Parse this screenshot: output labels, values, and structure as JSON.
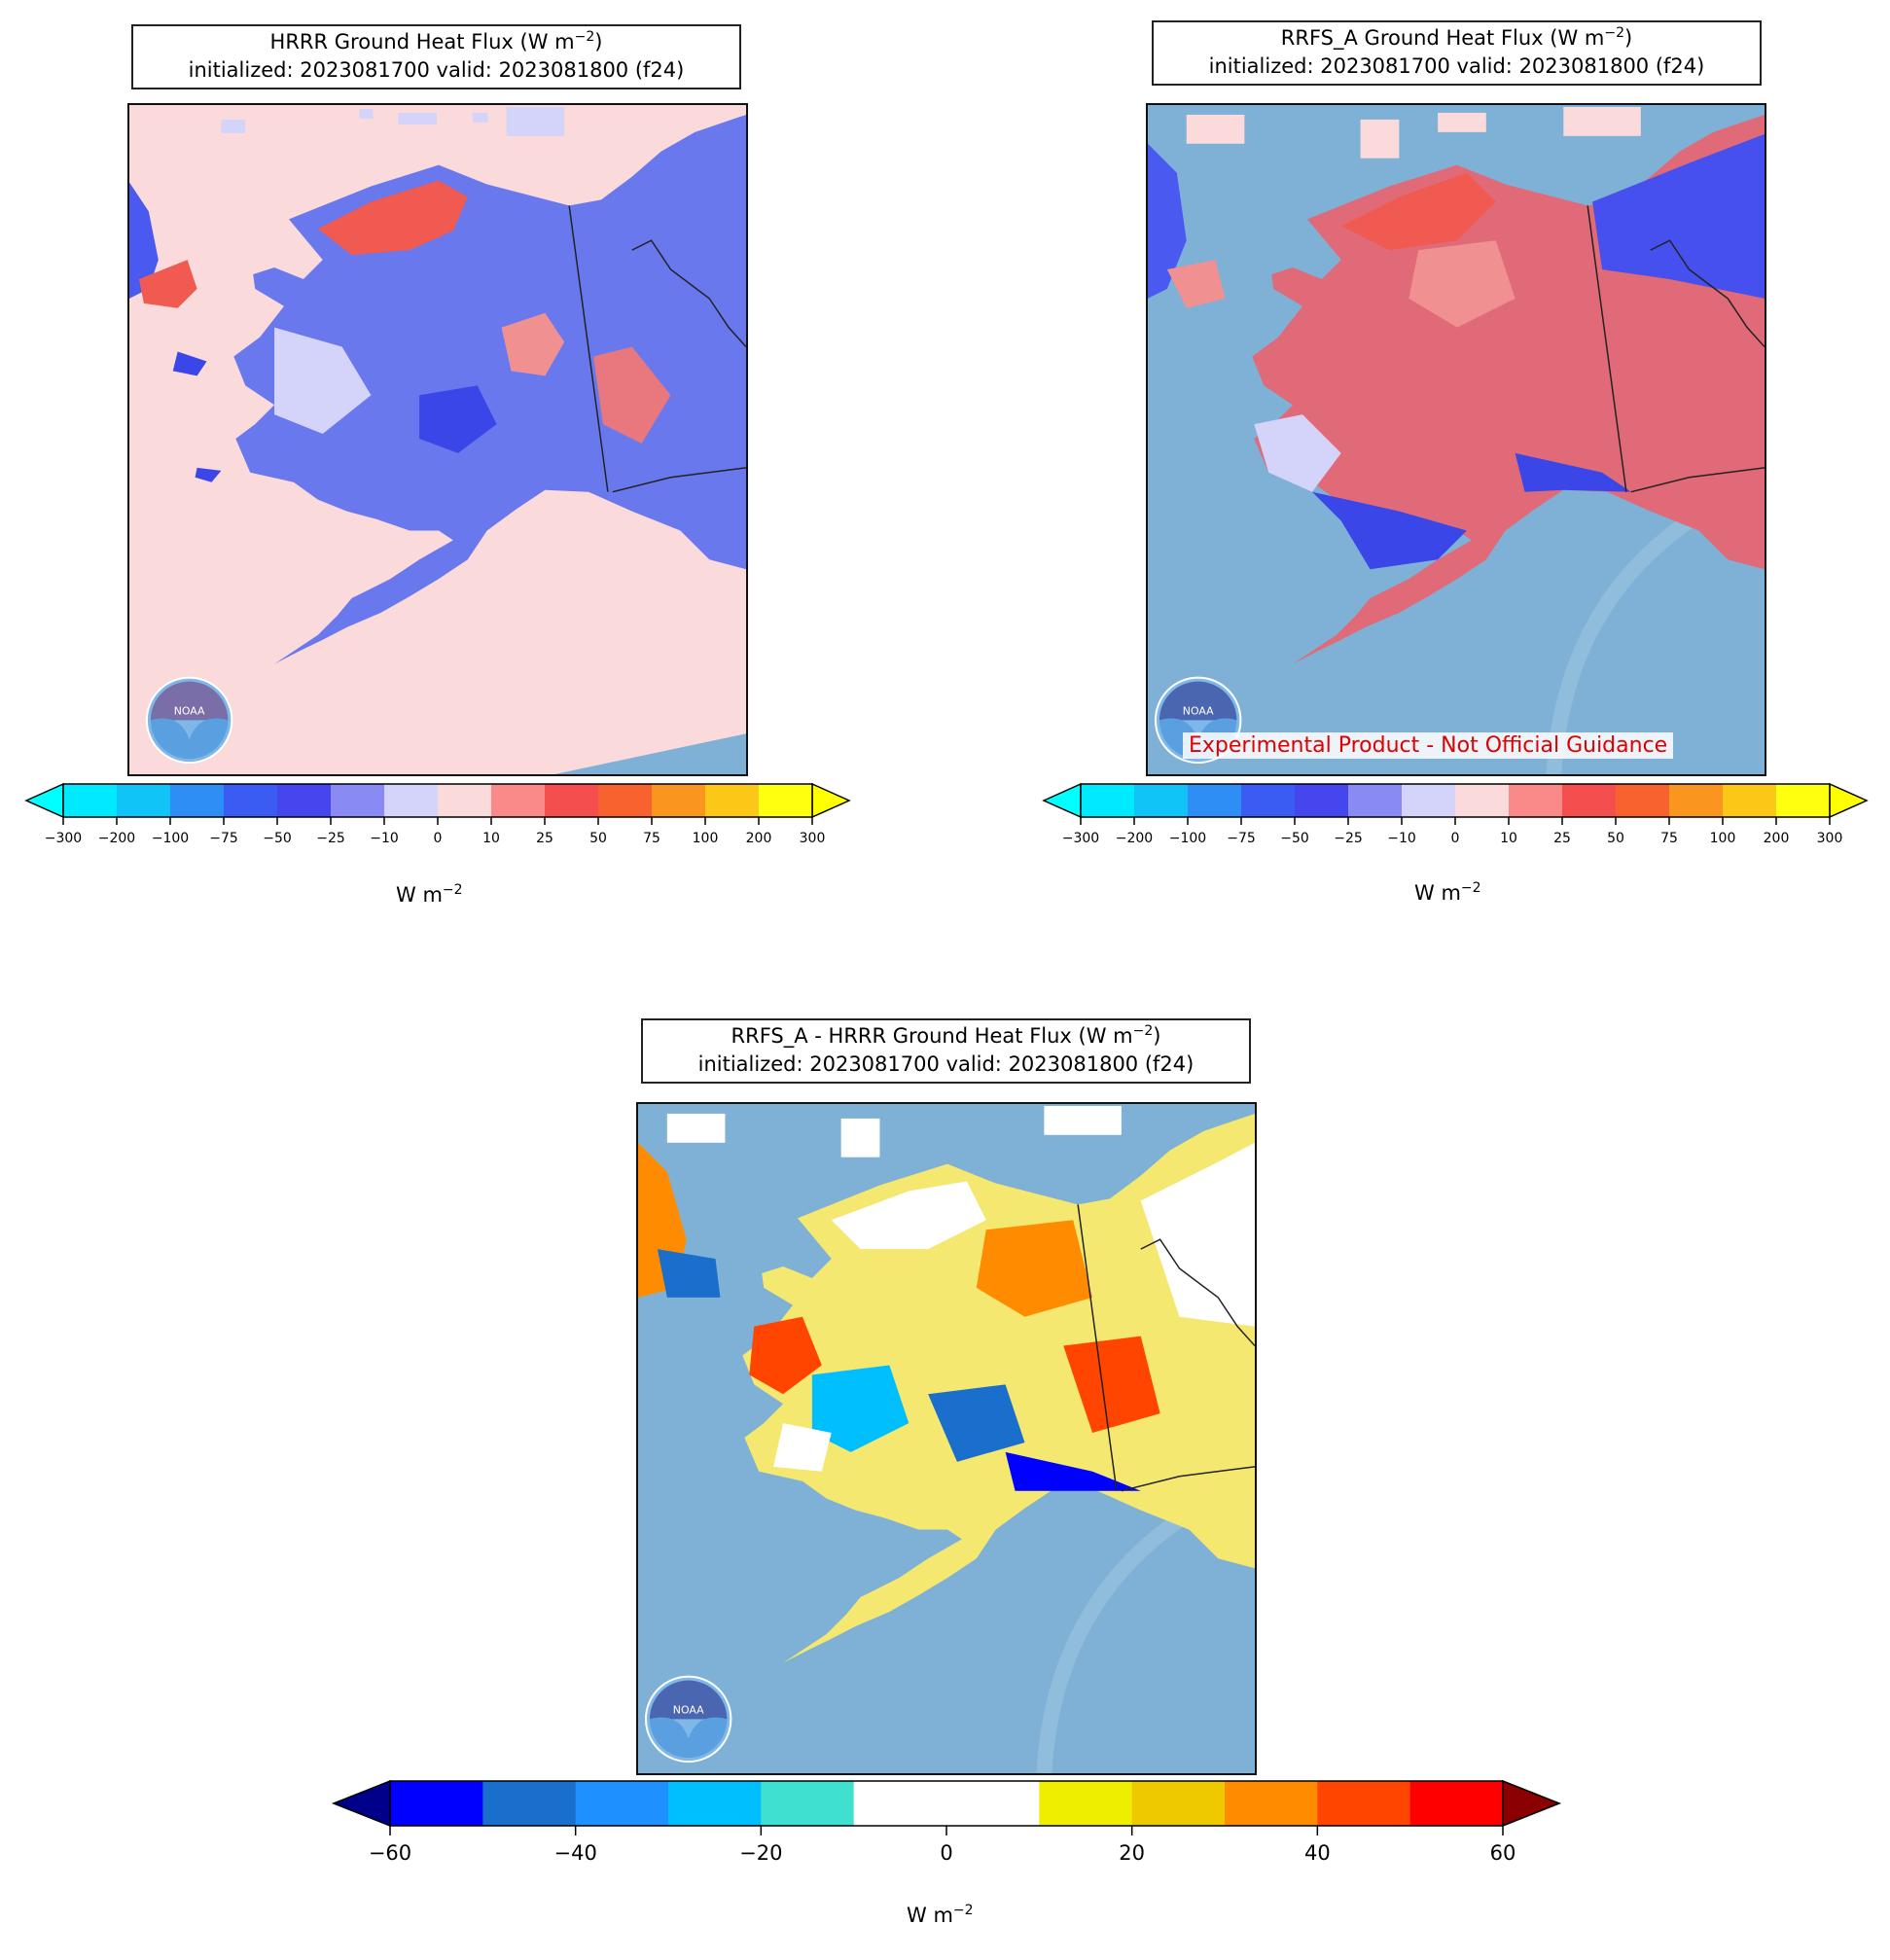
{
  "panels": [
    {
      "id": "hrrr",
      "title_prefix": "HRRR Ground Heat Flux (W m",
      "title_exp": "−2",
      "title_suffix": ")",
      "subtitle": "initialized: 2023081700 valid: 2023081800 (f24)",
      "background": "#fadadb",
      "colorbar": "flux"
    },
    {
      "id": "rrfs",
      "title_prefix": "RRFS_A Ground Heat Flux (W m",
      "title_exp": "−2",
      "title_suffix": ")",
      "subtitle": "initialized: 2023081700 valid: 2023081800 (f24)",
      "background": "#7fb1d6",
      "colorbar": "flux",
      "watermark": "Experimental Product - Not Official Guidance"
    },
    {
      "id": "diff",
      "title_prefix": "RRFS_A - HRRR Ground Heat Flux (W m",
      "title_exp": "−2",
      "title_suffix": ")",
      "subtitle": "initialized: 2023081700 valid: 2023081800 (f24)",
      "background": "#7fb1d6",
      "colorbar": "diff"
    }
  ],
  "colorbars": {
    "flux": {
      "unit_prefix": "W m",
      "unit_exp": "−2",
      "ticks": [
        "−300",
        "−200",
        "−100",
        "−75",
        "−50",
        "−25",
        "−10",
        "0",
        "10",
        "25",
        "50",
        "75",
        "100",
        "200",
        "300"
      ],
      "under_color": "#00ffff",
      "over_color": "#ffff00",
      "colors": [
        "#00eaff",
        "#10c4f8",
        "#2e8ef5",
        "#3a5cf3",
        "#4646ee",
        "#8a8af5",
        "#d4d4fa",
        "#fadadb",
        "#fa8a8a",
        "#f54e4e",
        "#f8622e",
        "#fa9520",
        "#fcc818",
        "#ffff10"
      ]
    },
    "diff": {
      "unit_prefix": "W m",
      "unit_exp": "−2",
      "ticks": [
        "−60",
        "−40",
        "−20",
        "0",
        "20",
        "40",
        "60"
      ],
      "tick_values": [
        -60,
        -40,
        -20,
        0,
        20,
        40,
        60
      ],
      "under_color": "#00008b",
      "over_color": "#8b0000",
      "colors": [
        "#0000ff",
        "#1a6fcc",
        "#1e90ff",
        "#00bfff",
        "#40e0d0",
        "#ffffff",
        "#ffffff",
        "#eeee00",
        "#eec900",
        "#ff8c00",
        "#ff4500",
        "#ff0000"
      ]
    }
  },
  "logo": {
    "text": "NOAA"
  }
}
